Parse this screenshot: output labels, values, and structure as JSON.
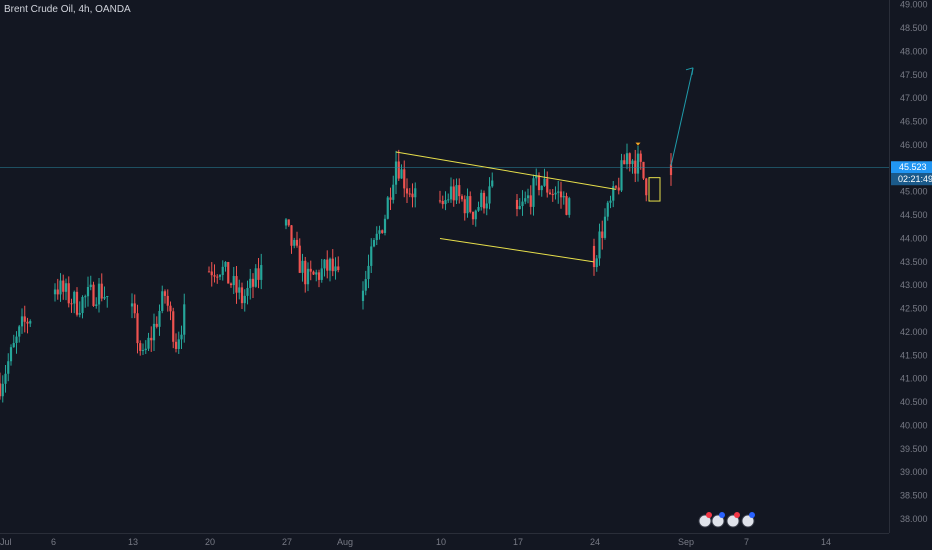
{
  "symbol": {
    "title": "Brent Crude Oil, 4h, OANDA"
  },
  "colors": {
    "background": "#131722",
    "grid": "#1e222d",
    "up": "#26a69a",
    "down": "#ef5350",
    "pattern": "#e7df4b",
    "projection": "#1f9baa",
    "price_line": "#2a8aa1",
    "badge": "#2196f3"
  },
  "chart_data": {
    "type": "candlestick",
    "title": "Brent Crude Oil, 4h, OANDA",
    "xlabel": "",
    "ylabel": "",
    "ylim": [
      37.7,
      49.1
    ],
    "grid": false,
    "x_tick_labels": [
      "Jul",
      "6",
      "13",
      "20",
      "27",
      "Aug",
      "10",
      "17",
      "24",
      "Sep",
      "7",
      "14"
    ],
    "y_tick_labels": [
      "49.000",
      "48.500",
      "48.000",
      "47.500",
      "47.000",
      "46.500",
      "46.000",
      "45.500",
      "45.000",
      "44.500",
      "44.000",
      "43.500",
      "43.000",
      "42.500",
      "42.000",
      "41.500",
      "41.000",
      "40.500",
      "40.000",
      "39.500",
      "39.000",
      "38.500",
      "38.000"
    ],
    "last_price": "45.523",
    "countdown": "02:21:49",
    "close_path": [
      [
        "Jul 1",
        40.9
      ],
      [
        "Jul 3",
        42.1
      ],
      [
        "Jul 6",
        43.0
      ],
      [
        "Jul 8",
        42.6
      ],
      [
        "Jul 10",
        42.9
      ],
      [
        "Jul 13",
        42.4
      ],
      [
        "Jul 14",
        41.4
      ],
      [
        "Jul 16",
        42.8
      ],
      [
        "Jul 17",
        41.8
      ],
      [
        "Jul 19",
        43.3
      ],
      [
        "Jul 21",
        43.4
      ],
      [
        "Jul 23",
        42.7
      ],
      [
        "Jul 24",
        43.0
      ],
      [
        "Jul 27",
        44.2
      ],
      [
        "Jul 28",
        43.6
      ],
      [
        "Jul 29",
        43.1
      ],
      [
        "Jul 31",
        43.4
      ],
      [
        "Aug 1",
        43.0
      ],
      [
        "Aug 3",
        42.9
      ],
      [
        "Aug 4",
        43.8
      ],
      [
        "Aug 5",
        44.5
      ],
      [
        "Aug 6",
        45.7
      ],
      [
        "Aug 7",
        45.1
      ],
      [
        "Aug 10",
        44.6
      ],
      [
        "Aug 11",
        45.0
      ],
      [
        "Aug 13",
        44.6
      ],
      [
        "Aug 15",
        45.1
      ],
      [
        "Aug 17",
        44.5
      ],
      [
        "Aug 19",
        45.2
      ],
      [
        "Aug 21",
        44.9
      ],
      [
        "Aug 22",
        44.6
      ],
      [
        "Aug 24",
        43.6
      ],
      [
        "Aug 25",
        44.4
      ],
      [
        "Aug 26",
        45.0
      ],
      [
        "Aug 27",
        45.8
      ],
      [
        "Aug 28",
        45.6
      ],
      [
        "Aug 29",
        45.0
      ],
      [
        "Aug 30",
        44.8
      ],
      [
        "Aug 31",
        45.5
      ]
    ],
    "annotations": {
      "channel_upper": [
        [
          "Aug 6",
          45.85
        ],
        [
          "Aug 26",
          45.05
        ]
      ],
      "channel_lower": [
        [
          "Aug 10",
          44.0
        ],
        [
          "Aug 24",
          43.5
        ]
      ],
      "projection_arrow": [
        [
          "Aug 31",
          45.55
        ],
        [
          "Sep 2",
          47.65
        ]
      ],
      "small_box": [
        [
          "Aug 29",
          44.8
        ],
        [
          "Aug 30",
          45.3
        ]
      ]
    }
  }
}
